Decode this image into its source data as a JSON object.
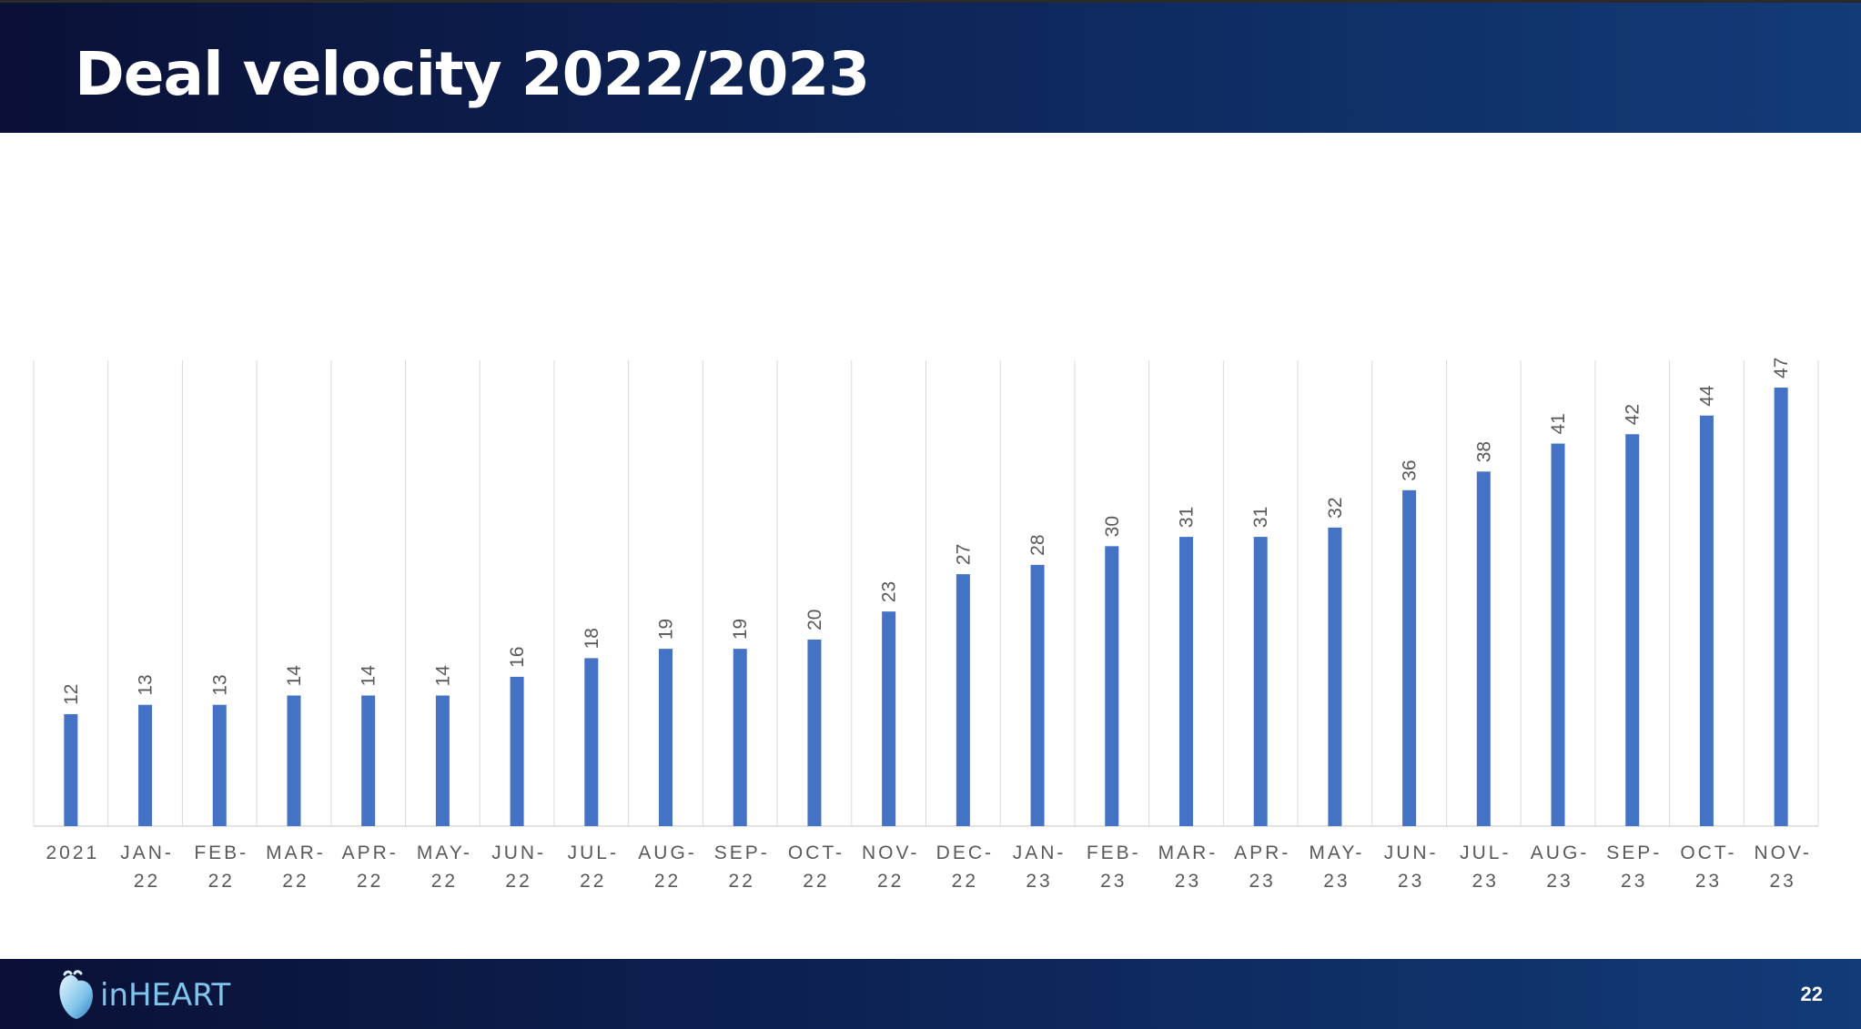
{
  "slide": {
    "title": "Deal velocity 2022/2023",
    "page_number": "22",
    "logo_text": "inHEART"
  },
  "colors": {
    "bar": "#4472c4",
    "header_dark": "#0a1036",
    "header_light": "#123b78",
    "grid": "#d9d9d9",
    "label_text": "#595959",
    "logo_text": "#7fc4ea"
  },
  "chart_data": {
    "type": "bar",
    "title": "",
    "xlabel": "",
    "ylabel": "",
    "ylim": [
      0,
      50
    ],
    "grid": "vertical",
    "data_labels": "rotated, above bars",
    "categories": [
      [
        "2021"
      ],
      [
        "JAN-",
        "22"
      ],
      [
        "FEB-",
        "22"
      ],
      [
        "MAR-",
        "22"
      ],
      [
        "APR-",
        "22"
      ],
      [
        "MAY-",
        "22"
      ],
      [
        "JUN-",
        "22"
      ],
      [
        "JUL-",
        "22"
      ],
      [
        "AUG-",
        "22"
      ],
      [
        "SEP-",
        "22"
      ],
      [
        "OCT-",
        "22"
      ],
      [
        "NOV-",
        "22"
      ],
      [
        "DEC-",
        "22"
      ],
      [
        "JAN-",
        "23"
      ],
      [
        "FEB-",
        "23"
      ],
      [
        "MAR-",
        "23"
      ],
      [
        "APR-",
        "23"
      ],
      [
        "MAY-",
        "23"
      ],
      [
        "JUN-",
        "23"
      ],
      [
        "JUL-",
        "23"
      ],
      [
        "AUG-",
        "23"
      ],
      [
        "SEP-",
        "23"
      ],
      [
        "OCT-",
        "23"
      ],
      [
        "NOV-",
        "23"
      ]
    ],
    "values": [
      12,
      13,
      13,
      14,
      14,
      14,
      16,
      18,
      19,
      19,
      20,
      23,
      27,
      28,
      30,
      31,
      31,
      32,
      36,
      38,
      41,
      42,
      44,
      47
    ]
  }
}
